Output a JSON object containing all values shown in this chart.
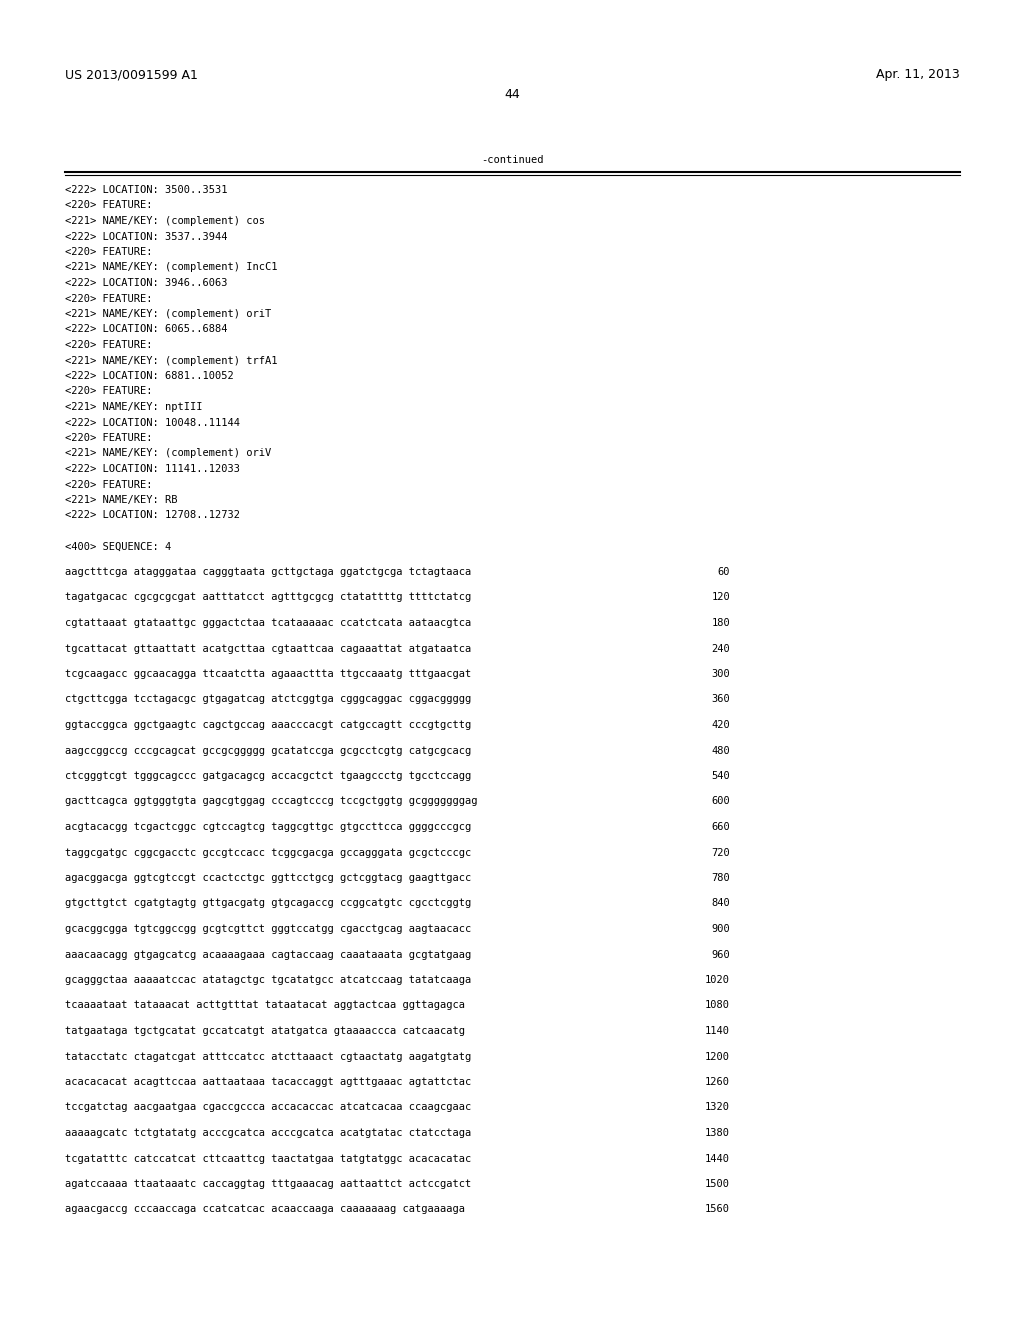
{
  "background_color": "#ffffff",
  "header_left": "US 2013/0091599 A1",
  "header_right": "Apr. 11, 2013",
  "page_number": "44",
  "continued_text": "-continued",
  "header_font_size": 9.0,
  "body_font_size": 7.5,
  "feature_lines": [
    "<222> LOCATION: 3500..3531",
    "<220> FEATURE:",
    "<221> NAME/KEY: (complement) cos",
    "<222> LOCATION: 3537..3944",
    "<220> FEATURE:",
    "<221> NAME/KEY: (complement) IncC1",
    "<222> LOCATION: 3946..6063",
    "<220> FEATURE:",
    "<221> NAME/KEY: (complement) oriT",
    "<222> LOCATION: 6065..6884",
    "<220> FEATURE:",
    "<221> NAME/KEY: (complement) trfA1",
    "<222> LOCATION: 6881..10052",
    "<220> FEATURE:",
    "<221> NAME/KEY: nptIII",
    "<222> LOCATION: 10048..11144",
    "<220> FEATURE:",
    "<221> NAME/KEY: (complement) oriV",
    "<222> LOCATION: 11141..12033",
    "<220> FEATURE:",
    "<221> NAME/KEY: RB",
    "<222> LOCATION: 12708..12732",
    "",
    "<400> SEQUENCE: 4"
  ],
  "sequence_lines": [
    [
      "aagctttcga atagggataa cagggtaata gcttgctaga ggatctgcga tctagtaaca",
      "60"
    ],
    [
      "tagatgacac cgcgcgcgat aatttatcct agtttgcgcg ctatattttg ttttctatcg",
      "120"
    ],
    [
      "cgtattaaat gtataattgc gggactctaa tcataaaaac ccatctcata aataacgtca",
      "180"
    ],
    [
      "tgcattacat gttaattatt acatgcttaa cgtaattcaa cagaaattat atgataatca",
      "240"
    ],
    [
      "tcgcaagacc ggcaacagga ttcaatctta agaaacttta ttgccaaatg tttgaacgat",
      "300"
    ],
    [
      "ctgcttcgga tcctagacgc gtgagatcag atctcggtga cgggcaggac cggacggggg",
      "360"
    ],
    [
      "ggtaccggca ggctgaagtc cagctgccag aaacccacgt catgccagtt cccgtgcttg",
      "420"
    ],
    [
      "aagccggccg cccgcagcat gccgcggggg gcatatccga gcgcctcgtg catgcgcacg",
      "480"
    ],
    [
      "ctcgggtcgt tgggcagccc gatgacagcg accacgctct tgaagccctg tgcctccagg",
      "540"
    ],
    [
      "gacttcagca ggtgggtgta gagcgtggag cccagtcccg tccgctggtg gcgggggggag",
      "600"
    ],
    [
      "acgtacacgg tcgactcggc cgtccagtcg taggcgttgc gtgccttcca ggggcccgcg",
      "660"
    ],
    [
      "taggcgatgc cggcgacctc gccgtccacc tcggcgacga gccagggata gcgctcccgc",
      "720"
    ],
    [
      "agacggacga ggtcgtccgt ccactcctgc ggttcctgcg gctcggtacg gaagttgacc",
      "780"
    ],
    [
      "gtgcttgtct cgatgtagtg gttgacgatg gtgcagaccg ccggcatgtc cgcctcggtg",
      "840"
    ],
    [
      "gcacggcgga tgtcggccgg gcgtcgttct gggtccatgg cgacctgcag aagtaacacc",
      "900"
    ],
    [
      "aaacaacagg gtgagcatcg acaaaagaaa cagtaccaag caaataaata gcgtatgaag",
      "960"
    ],
    [
      "gcagggctaa aaaaatccac atatagctgc tgcatatgcc atcatccaag tatatcaaga",
      "1020"
    ],
    [
      "tcaaaataat tataaacat acttgtttat tataatacat aggtactcaa ggttagagca",
      "1080"
    ],
    [
      "tatgaataga tgctgcatat gccatcatgt atatgatca gtaaaaccca catcaacatg",
      "1140"
    ],
    [
      "tatacctatc ctagatcgat atttccatcc atcttaaact cgtaactatg aagatgtatg",
      "1200"
    ],
    [
      "acacacacat acagttccaa aattaataaa tacaccaggt agtttgaaac agtattctac",
      "1260"
    ],
    [
      "tccgatctag aacgaatgaa cgaccgccca accacaccac atcatcacaa ccaagcgaac",
      "1320"
    ],
    [
      "aaaaagcatc tctgtatatg acccgcatca acccgcatca acatgtatac ctatcctaga",
      "1380"
    ],
    [
      "tcgatatttc catccatcat cttcaattcg taactatgaa tatgtatggc acacacatac",
      "1440"
    ],
    [
      "agatccaaaa ttaataaatc caccaggtag tttgaaacag aattaattct actccgatct",
      "1500"
    ],
    [
      "agaacgaccg cccaaccaga ccatcatcac acaaccaaga caaaaaaag catgaaaaga",
      "1560"
    ]
  ]
}
